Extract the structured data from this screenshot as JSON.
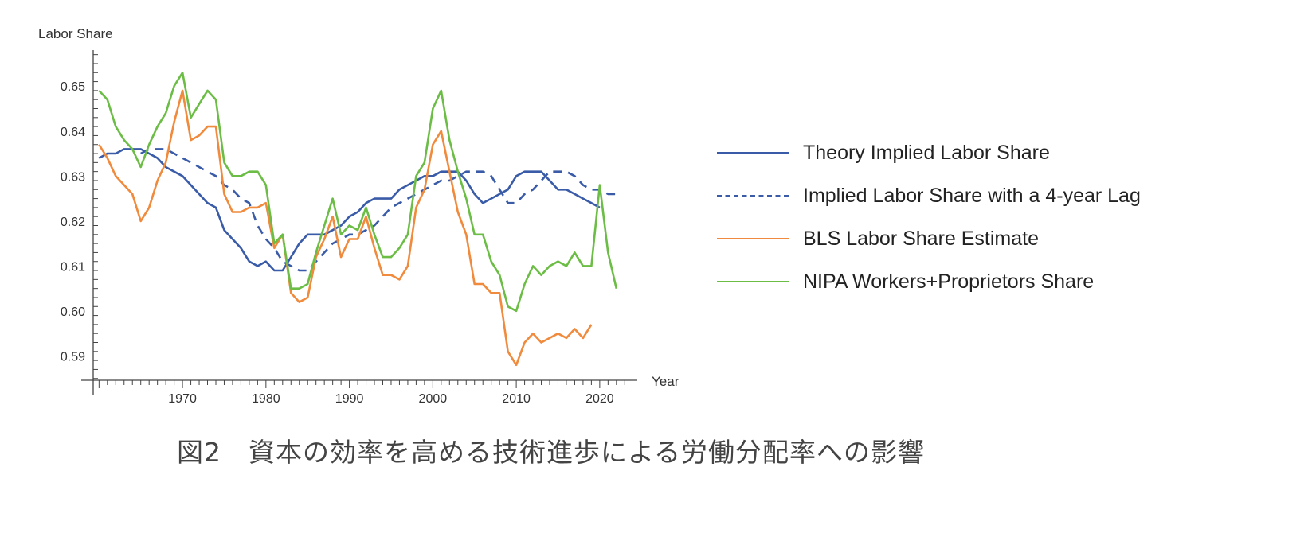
{
  "chart_data": {
    "type": "line",
    "title": "",
    "xlabel": "Year",
    "ylabel": "Labor Share",
    "xlim": [
      1959.3,
      2024.5
    ],
    "ylim": [
      0.5846,
      0.658
    ],
    "xticks": [
      1970,
      1980,
      1990,
      2000,
      2010,
      2020
    ],
    "yticks": [
      0.59,
      0.6,
      0.61,
      0.62,
      0.63,
      0.64,
      0.65
    ],
    "ytick_labels": [
      "0.59",
      "0.60",
      "0.61",
      "0.62",
      "0.63",
      "0.64",
      "0.65"
    ],
    "grid": false,
    "legend_position": "right",
    "series": [
      {
        "name": "Theory Implied Labor Share",
        "color": "#3a5ca8",
        "dash": false,
        "start": 1960,
        "values": [
          0.634,
          0.635,
          0.635,
          0.636,
          0.636,
          0.636,
          0.635,
          0.634,
          0.632,
          0.631,
          0.63,
          0.628,
          0.626,
          0.624,
          0.623,
          0.618,
          0.616,
          0.614,
          0.611,
          0.61,
          0.611,
          0.609,
          0.609,
          0.612,
          0.615,
          0.617,
          0.617,
          0.617,
          0.618,
          0.619,
          0.621,
          0.622,
          0.624,
          0.625,
          0.625,
          0.625,
          0.627,
          0.628,
          0.629,
          0.63,
          0.63,
          0.631,
          0.631,
          0.631,
          0.629,
          0.626,
          0.624,
          0.625,
          0.626,
          0.627,
          0.63,
          0.631,
          0.631,
          0.631,
          0.629,
          0.627,
          0.627,
          0.626,
          0.625,
          0.624,
          0.623
        ]
      },
      {
        "name": "Implied Labor Share with a 4-year Lag",
        "color": "#3a5ca8",
        "dash": true,
        "start": 1965,
        "values": [
          0.635,
          0.636,
          0.636,
          0.636,
          0.635,
          0.634,
          0.633,
          0.632,
          0.631,
          0.63,
          0.628,
          0.627,
          0.625,
          0.624,
          0.619,
          0.616,
          0.614,
          0.611,
          0.61,
          0.609,
          0.609,
          0.611,
          0.613,
          0.615,
          0.616,
          0.617,
          0.617,
          0.618,
          0.619,
          0.621,
          0.623,
          0.624,
          0.625,
          0.626,
          0.627,
          0.628,
          0.629,
          0.629,
          0.63,
          0.631,
          0.631,
          0.631,
          0.63,
          0.627,
          0.624,
          0.624,
          0.626,
          0.627,
          0.629,
          0.631,
          0.631,
          0.631,
          0.63,
          0.628,
          0.627,
          0.627,
          0.626,
          0.626
        ]
      },
      {
        "name": "BLS Labor Share Estimate",
        "color": "#f08a3c",
        "dash": false,
        "start": 1960,
        "values": [
          0.637,
          0.634,
          0.63,
          0.628,
          0.626,
          0.62,
          0.623,
          0.629,
          0.633,
          0.642,
          0.649,
          0.638,
          0.639,
          0.641,
          0.641,
          0.626,
          0.622,
          0.622,
          0.623,
          0.623,
          0.624,
          0.614,
          0.617,
          0.604,
          0.602,
          0.603,
          0.612,
          0.616,
          0.621,
          0.612,
          0.616,
          0.616,
          0.621,
          0.614,
          0.608,
          0.608,
          0.607,
          0.61,
          0.623,
          0.627,
          0.637,
          0.64,
          0.631,
          0.622,
          0.617,
          0.606,
          0.606,
          0.604,
          0.604,
          0.591,
          0.588,
          0.593,
          0.595,
          0.593,
          0.594,
          0.595,
          0.594,
          0.596,
          0.594,
          0.597
        ]
      },
      {
        "name": "NIPA Workers+Proprietors Share",
        "color": "#6cbd45",
        "dash": false,
        "start": 1960,
        "values": [
          0.649,
          0.647,
          0.641,
          0.638,
          0.636,
          0.632,
          0.637,
          0.641,
          0.644,
          0.65,
          0.653,
          0.643,
          0.646,
          0.649,
          0.647,
          0.633,
          0.63,
          0.63,
          0.631,
          0.631,
          0.628,
          0.615,
          0.617,
          0.605,
          0.605,
          0.606,
          0.613,
          0.619,
          0.625,
          0.617,
          0.619,
          0.618,
          0.623,
          0.617,
          0.612,
          0.612,
          0.614,
          0.617,
          0.63,
          0.633,
          0.645,
          0.649,
          0.638,
          0.631,
          0.625,
          0.617,
          0.617,
          0.611,
          0.608,
          0.601,
          0.6,
          0.606,
          0.61,
          0.608,
          0.61,
          0.611,
          0.61,
          0.613,
          0.61,
          0.61,
          0.628,
          0.613,
          0.605
        ]
      }
    ]
  },
  "caption": "図2　資本の効率を高める技術進歩による労働分配率への影響"
}
